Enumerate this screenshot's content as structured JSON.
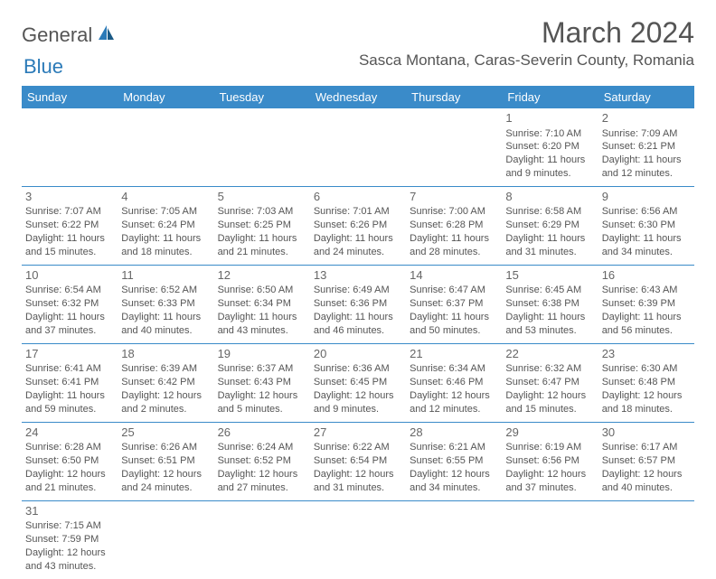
{
  "logo": {
    "general": "General",
    "blue": "Blue"
  },
  "title": "March 2024",
  "location": "Sasca Montana, Caras-Severin County, Romania",
  "colors": {
    "header_bg": "#3a8bc9",
    "header_fg": "#ffffff",
    "text": "#555555",
    "brand_blue": "#2b7ab8",
    "background": "#ffffff",
    "cell_border": "#3a8bc9"
  },
  "day_headers": [
    "Sunday",
    "Monday",
    "Tuesday",
    "Wednesday",
    "Thursday",
    "Friday",
    "Saturday"
  ],
  "weeks": [
    [
      null,
      null,
      null,
      null,
      null,
      {
        "n": "1",
        "sr": "Sunrise: 7:10 AM",
        "ss": "Sunset: 6:20 PM",
        "dl1": "Daylight: 11 hours",
        "dl2": "and 9 minutes."
      },
      {
        "n": "2",
        "sr": "Sunrise: 7:09 AM",
        "ss": "Sunset: 6:21 PM",
        "dl1": "Daylight: 11 hours",
        "dl2": "and 12 minutes."
      }
    ],
    [
      {
        "n": "3",
        "sr": "Sunrise: 7:07 AM",
        "ss": "Sunset: 6:22 PM",
        "dl1": "Daylight: 11 hours",
        "dl2": "and 15 minutes."
      },
      {
        "n": "4",
        "sr": "Sunrise: 7:05 AM",
        "ss": "Sunset: 6:24 PM",
        "dl1": "Daylight: 11 hours",
        "dl2": "and 18 minutes."
      },
      {
        "n": "5",
        "sr": "Sunrise: 7:03 AM",
        "ss": "Sunset: 6:25 PM",
        "dl1": "Daylight: 11 hours",
        "dl2": "and 21 minutes."
      },
      {
        "n": "6",
        "sr": "Sunrise: 7:01 AM",
        "ss": "Sunset: 6:26 PM",
        "dl1": "Daylight: 11 hours",
        "dl2": "and 24 minutes."
      },
      {
        "n": "7",
        "sr": "Sunrise: 7:00 AM",
        "ss": "Sunset: 6:28 PM",
        "dl1": "Daylight: 11 hours",
        "dl2": "and 28 minutes."
      },
      {
        "n": "8",
        "sr": "Sunrise: 6:58 AM",
        "ss": "Sunset: 6:29 PM",
        "dl1": "Daylight: 11 hours",
        "dl2": "and 31 minutes."
      },
      {
        "n": "9",
        "sr": "Sunrise: 6:56 AM",
        "ss": "Sunset: 6:30 PM",
        "dl1": "Daylight: 11 hours",
        "dl2": "and 34 minutes."
      }
    ],
    [
      {
        "n": "10",
        "sr": "Sunrise: 6:54 AM",
        "ss": "Sunset: 6:32 PM",
        "dl1": "Daylight: 11 hours",
        "dl2": "and 37 minutes."
      },
      {
        "n": "11",
        "sr": "Sunrise: 6:52 AM",
        "ss": "Sunset: 6:33 PM",
        "dl1": "Daylight: 11 hours",
        "dl2": "and 40 minutes."
      },
      {
        "n": "12",
        "sr": "Sunrise: 6:50 AM",
        "ss": "Sunset: 6:34 PM",
        "dl1": "Daylight: 11 hours",
        "dl2": "and 43 minutes."
      },
      {
        "n": "13",
        "sr": "Sunrise: 6:49 AM",
        "ss": "Sunset: 6:36 PM",
        "dl1": "Daylight: 11 hours",
        "dl2": "and 46 minutes."
      },
      {
        "n": "14",
        "sr": "Sunrise: 6:47 AM",
        "ss": "Sunset: 6:37 PM",
        "dl1": "Daylight: 11 hours",
        "dl2": "and 50 minutes."
      },
      {
        "n": "15",
        "sr": "Sunrise: 6:45 AM",
        "ss": "Sunset: 6:38 PM",
        "dl1": "Daylight: 11 hours",
        "dl2": "and 53 minutes."
      },
      {
        "n": "16",
        "sr": "Sunrise: 6:43 AM",
        "ss": "Sunset: 6:39 PM",
        "dl1": "Daylight: 11 hours",
        "dl2": "and 56 minutes."
      }
    ],
    [
      {
        "n": "17",
        "sr": "Sunrise: 6:41 AM",
        "ss": "Sunset: 6:41 PM",
        "dl1": "Daylight: 11 hours",
        "dl2": "and 59 minutes."
      },
      {
        "n": "18",
        "sr": "Sunrise: 6:39 AM",
        "ss": "Sunset: 6:42 PM",
        "dl1": "Daylight: 12 hours",
        "dl2": "and 2 minutes."
      },
      {
        "n": "19",
        "sr": "Sunrise: 6:37 AM",
        "ss": "Sunset: 6:43 PM",
        "dl1": "Daylight: 12 hours",
        "dl2": "and 5 minutes."
      },
      {
        "n": "20",
        "sr": "Sunrise: 6:36 AM",
        "ss": "Sunset: 6:45 PM",
        "dl1": "Daylight: 12 hours",
        "dl2": "and 9 minutes."
      },
      {
        "n": "21",
        "sr": "Sunrise: 6:34 AM",
        "ss": "Sunset: 6:46 PM",
        "dl1": "Daylight: 12 hours",
        "dl2": "and 12 minutes."
      },
      {
        "n": "22",
        "sr": "Sunrise: 6:32 AM",
        "ss": "Sunset: 6:47 PM",
        "dl1": "Daylight: 12 hours",
        "dl2": "and 15 minutes."
      },
      {
        "n": "23",
        "sr": "Sunrise: 6:30 AM",
        "ss": "Sunset: 6:48 PM",
        "dl1": "Daylight: 12 hours",
        "dl2": "and 18 minutes."
      }
    ],
    [
      {
        "n": "24",
        "sr": "Sunrise: 6:28 AM",
        "ss": "Sunset: 6:50 PM",
        "dl1": "Daylight: 12 hours",
        "dl2": "and 21 minutes."
      },
      {
        "n": "25",
        "sr": "Sunrise: 6:26 AM",
        "ss": "Sunset: 6:51 PM",
        "dl1": "Daylight: 12 hours",
        "dl2": "and 24 minutes."
      },
      {
        "n": "26",
        "sr": "Sunrise: 6:24 AM",
        "ss": "Sunset: 6:52 PM",
        "dl1": "Daylight: 12 hours",
        "dl2": "and 27 minutes."
      },
      {
        "n": "27",
        "sr": "Sunrise: 6:22 AM",
        "ss": "Sunset: 6:54 PM",
        "dl1": "Daylight: 12 hours",
        "dl2": "and 31 minutes."
      },
      {
        "n": "28",
        "sr": "Sunrise: 6:21 AM",
        "ss": "Sunset: 6:55 PM",
        "dl1": "Daylight: 12 hours",
        "dl2": "and 34 minutes."
      },
      {
        "n": "29",
        "sr": "Sunrise: 6:19 AM",
        "ss": "Sunset: 6:56 PM",
        "dl1": "Daylight: 12 hours",
        "dl2": "and 37 minutes."
      },
      {
        "n": "30",
        "sr": "Sunrise: 6:17 AM",
        "ss": "Sunset: 6:57 PM",
        "dl1": "Daylight: 12 hours",
        "dl2": "and 40 minutes."
      }
    ],
    [
      {
        "n": "31",
        "sr": "Sunrise: 7:15 AM",
        "ss": "Sunset: 7:59 PM",
        "dl1": "Daylight: 12 hours",
        "dl2": "and 43 minutes."
      },
      null,
      null,
      null,
      null,
      null,
      null
    ]
  ]
}
